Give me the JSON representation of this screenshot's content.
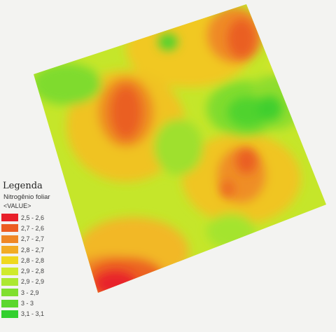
{
  "legend": {
    "title": "Legenda",
    "layer": "Nitrogênio foliar",
    "field": "<VALUE>",
    "items": [
      {
        "label": "2,5 - 2,6",
        "color": "#e8202a"
      },
      {
        "label": "2,7 - 2,6",
        "color": "#ec5d22"
      },
      {
        "label": "2,7 - 2,7",
        "color": "#ef8725"
      },
      {
        "label": "2,8 - 2,7",
        "color": "#f2ac25"
      },
      {
        "label": "2,8 - 2,8",
        "color": "#efd81f"
      },
      {
        "label": "2,9 - 2,8",
        "color": "#cfea2c"
      },
      {
        "label": "2,9 - 2,9",
        "color": "#ace830"
      },
      {
        "label": "3 - 2,9",
        "color": "#80df2e"
      },
      {
        "label": "3 - 3",
        "color": "#5cd72d"
      },
      {
        "label": "3,1 - 3,1",
        "color": "#33d02f"
      }
    ]
  }
}
